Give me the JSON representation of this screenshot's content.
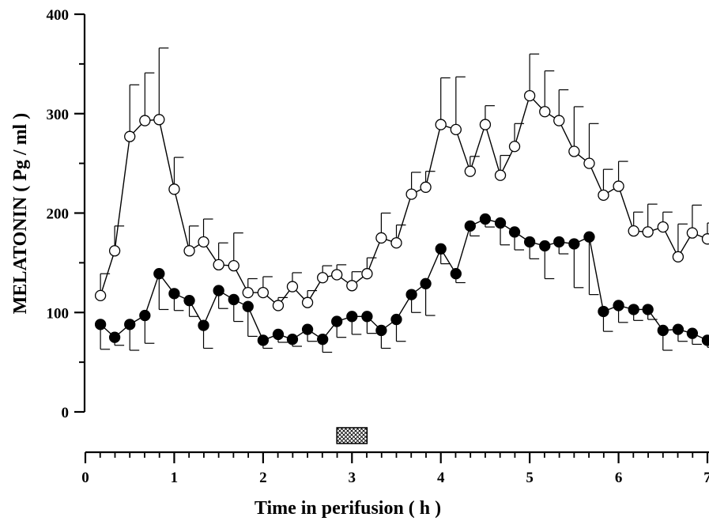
{
  "chart_data": {
    "type": "line",
    "xlabel": "Time in perifusion ( h )",
    "ylabel": "MELATONIN ( Pg / ml )",
    "xlim": [
      0,
      7
    ],
    "ylim": [
      0,
      400
    ],
    "x_ticks": [
      "0",
      "1",
      "2",
      "3",
      "4",
      "5",
      "6",
      "7"
    ],
    "y_ticks": [
      "0",
      "100",
      "200",
      "300",
      "400"
    ],
    "grid": false,
    "legend": "none",
    "stimulus_bar": {
      "x_start": 2.83,
      "x_end": 3.17,
      "pattern": "crosshatch"
    },
    "x": [
      0.17,
      0.33,
      0.5,
      0.67,
      0.83,
      1.0,
      1.17,
      1.33,
      1.5,
      1.67,
      1.83,
      2.0,
      2.17,
      2.33,
      2.5,
      2.67,
      2.83,
      3.0,
      3.17,
      3.33,
      3.5,
      3.67,
      3.83,
      4.0,
      4.17,
      4.33,
      4.5,
      4.67,
      4.83,
      5.0,
      5.17,
      5.33,
      5.5,
      5.67,
      5.83,
      6.0,
      6.17,
      6.33,
      6.5,
      6.67,
      6.83,
      7.0
    ],
    "series": [
      {
        "marker": "open-circle",
        "color": "#000000",
        "values": [
          117,
          162,
          277,
          293,
          294,
          224,
          162,
          171,
          148,
          147,
          120,
          120,
          107,
          126,
          110,
          135,
          138,
          127,
          139,
          175,
          170,
          219,
          226,
          289,
          284,
          242,
          289,
          238,
          267,
          318,
          302,
          293,
          262,
          250,
          218,
          227,
          182,
          181,
          186,
          156,
          180,
          174
        ],
        "error": [
          22,
          25,
          52,
          48,
          72,
          32,
          25,
          23,
          22,
          33,
          14,
          16,
          8,
          14,
          12,
          12,
          10,
          14,
          16,
          25,
          18,
          22,
          16,
          47,
          53,
          15,
          19,
          20,
          23,
          42,
          41,
          31,
          45,
          40,
          26,
          25,
          19,
          28,
          15,
          33,
          28,
          16
        ]
      },
      {
        "marker": "filled-circle",
        "color": "#000000",
        "values": [
          88,
          75,
          88,
          97,
          139,
          119,
          112,
          87,
          122,
          113,
          106,
          72,
          78,
          73,
          83,
          73,
          91,
          96,
          96,
          82,
          93,
          118,
          129,
          164,
          139,
          187,
          194,
          190,
          181,
          171,
          167,
          171,
          169,
          176,
          101,
          107,
          103,
          103,
          82,
          83,
          79,
          72
        ],
        "error": [
          25,
          8,
          26,
          28,
          36,
          17,
          16,
          23,
          18,
          22,
          30,
          8,
          8,
          7,
          12,
          13,
          16,
          18,
          17,
          18,
          22,
          18,
          32,
          15,
          9,
          10,
          8,
          22,
          18,
          17,
          33,
          12,
          44,
          58,
          20,
          17,
          11,
          10,
          20,
          12,
          11,
          7
        ]
      }
    ]
  }
}
